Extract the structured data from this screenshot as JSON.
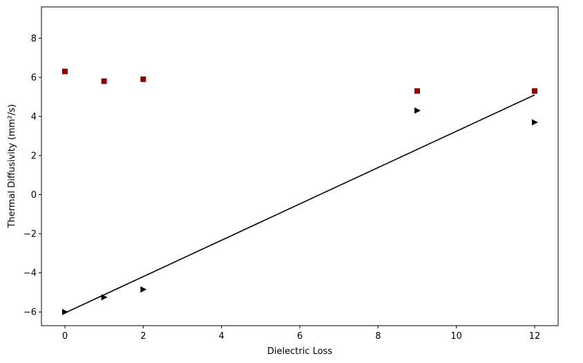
{
  "chart_data": {
    "type": "scatter",
    "title": "",
    "xlabel": "Dielectric Loss",
    "ylabel": "Thermal Diffusivity (mm²/s)",
    "xlim": [
      -0.6,
      12.6
    ],
    "ylim": [
      -6.7,
      9.6
    ],
    "x_ticks": [
      0,
      2,
      4,
      6,
      8,
      10,
      12
    ],
    "y_ticks": [
      -6,
      -4,
      -2,
      0,
      2,
      4,
      6,
      8
    ],
    "x_tick_labels": [
      "0",
      "2",
      "4",
      "6",
      "8",
      "10",
      "12"
    ],
    "y_tick_labels": [
      "−6",
      "−4",
      "−2",
      "0",
      "2",
      "4",
      "6",
      "8"
    ],
    "grid": false,
    "legend": "none",
    "series": [
      {
        "marker": "square",
        "color": "#8b0000",
        "points": [
          {
            "x": 0,
            "y": 6.3
          },
          {
            "x": 1,
            "y": 5.8
          },
          {
            "x": 2,
            "y": 5.9
          },
          {
            "x": 9,
            "y": 5.3
          },
          {
            "x": 12,
            "y": 5.3
          }
        ]
      },
      {
        "marker": "triangle-right",
        "color": "#000000",
        "points": [
          {
            "x": 0,
            "y": -6.0
          },
          {
            "x": 1,
            "y": -5.25
          },
          {
            "x": 2,
            "y": -4.85
          },
          {
            "x": 9,
            "y": 4.3
          },
          {
            "x": 12,
            "y": 3.7
          }
        ]
      }
    ],
    "lines": [
      {
        "style": "solid",
        "color": "#000000",
        "points": [
          {
            "x": 0,
            "y": -6.05
          },
          {
            "x": 12,
            "y": 5.1
          }
        ]
      }
    ]
  }
}
